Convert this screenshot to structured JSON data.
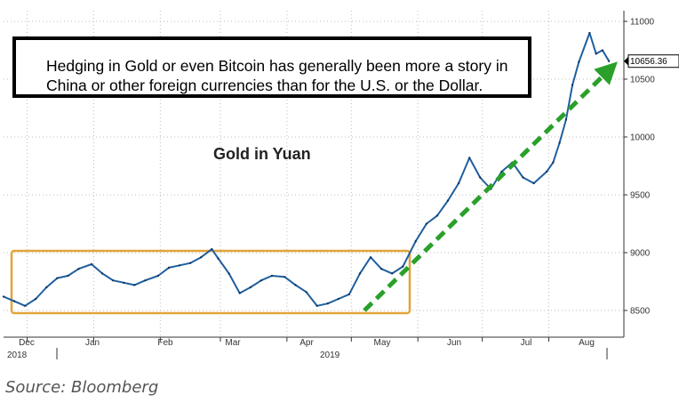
{
  "chart_data": {
    "type": "line",
    "title": "Gold in Yuan",
    "xlabel": "",
    "ylabel": "",
    "ylim": [
      8350,
      11100
    ],
    "y_ticks": [
      8500,
      9000,
      9500,
      10000,
      10500,
      11000
    ],
    "y_tick_labels": [
      "8500",
      "9000",
      "9500",
      "10000",
      "10500",
      "11000"
    ],
    "x_tick_labels": [
      {
        "month": "Dec",
        "year": "2018"
      },
      {
        "month": "Jan",
        "year": ""
      },
      {
        "month": "Feb",
        "year": ""
      },
      {
        "month": "Mar",
        "year": ""
      },
      {
        "month": "Apr",
        "year": "2019"
      },
      {
        "month": "May",
        "year": ""
      },
      {
        "month": "Jun",
        "year": ""
      },
      {
        "month": "Jul",
        "year": ""
      },
      {
        "month": "Aug",
        "year": ""
      }
    ],
    "last_value_label": "10656.36",
    "grid": true,
    "line_color": "#1f5f9e",
    "series": [
      {
        "x": [
          "2018-11-20",
          "2018-11-25",
          "2018-11-30",
          "2018-12-05",
          "2018-12-10",
          "2018-12-15",
          "2018-12-20",
          "2018-12-25",
          "2018-12-31",
          "2019-01-05",
          "2019-01-10",
          "2019-01-15",
          "2019-01-20",
          "2019-01-25",
          "2019-01-31",
          "2019-02-05",
          "2019-02-10",
          "2019-02-15",
          "2019-02-20",
          "2019-02-25",
          "2019-02-28",
          "2019-03-05",
          "2019-03-10",
          "2019-03-15",
          "2019-03-20",
          "2019-03-25",
          "2019-03-31",
          "2019-04-05",
          "2019-04-10",
          "2019-04-15",
          "2019-04-20",
          "2019-04-25",
          "2019-04-30",
          "2019-05-05",
          "2019-05-10",
          "2019-05-15",
          "2019-05-20",
          "2019-05-25",
          "2019-05-31",
          "2019-06-05",
          "2019-06-10",
          "2019-06-15",
          "2019-06-20",
          "2019-06-25",
          "2019-06-30",
          "2019-07-05",
          "2019-07-10",
          "2019-07-15",
          "2019-07-20",
          "2019-07-25",
          "2019-07-31",
          "2019-08-03",
          "2019-08-06",
          "2019-08-09",
          "2019-08-12",
          "2019-08-15",
          "2019-08-20",
          "2019-08-23",
          "2019-08-26",
          "2019-08-29"
        ],
        "values": [
          8620,
          8580,
          8540,
          8600,
          8700,
          8780,
          8800,
          8860,
          8900,
          8820,
          8760,
          8740,
          8720,
          8760,
          8800,
          8870,
          8890,
          8910,
          8960,
          9030,
          8950,
          8820,
          8650,
          8700,
          8760,
          8800,
          8790,
          8720,
          8660,
          8540,
          8560,
          8600,
          8640,
          8820,
          8960,
          8860,
          8820,
          8880,
          9100,
          9250,
          9320,
          9450,
          9600,
          9820,
          9650,
          9550,
          9700,
          9780,
          9650,
          9600,
          9700,
          9780,
          9950,
          10150,
          10450,
          10650,
          10900,
          10720,
          10750,
          10656
        ]
      }
    ],
    "annotations": {
      "callout_text": "Hedging in Gold or even Bitcoin has generally been more a story in China or other foreign currencies than for the U.S. or the Dollar.",
      "range_box_color": "#e0a53a",
      "trend_arrow_color": "#2aa02a"
    }
  },
  "source": "Source: Bloomberg"
}
